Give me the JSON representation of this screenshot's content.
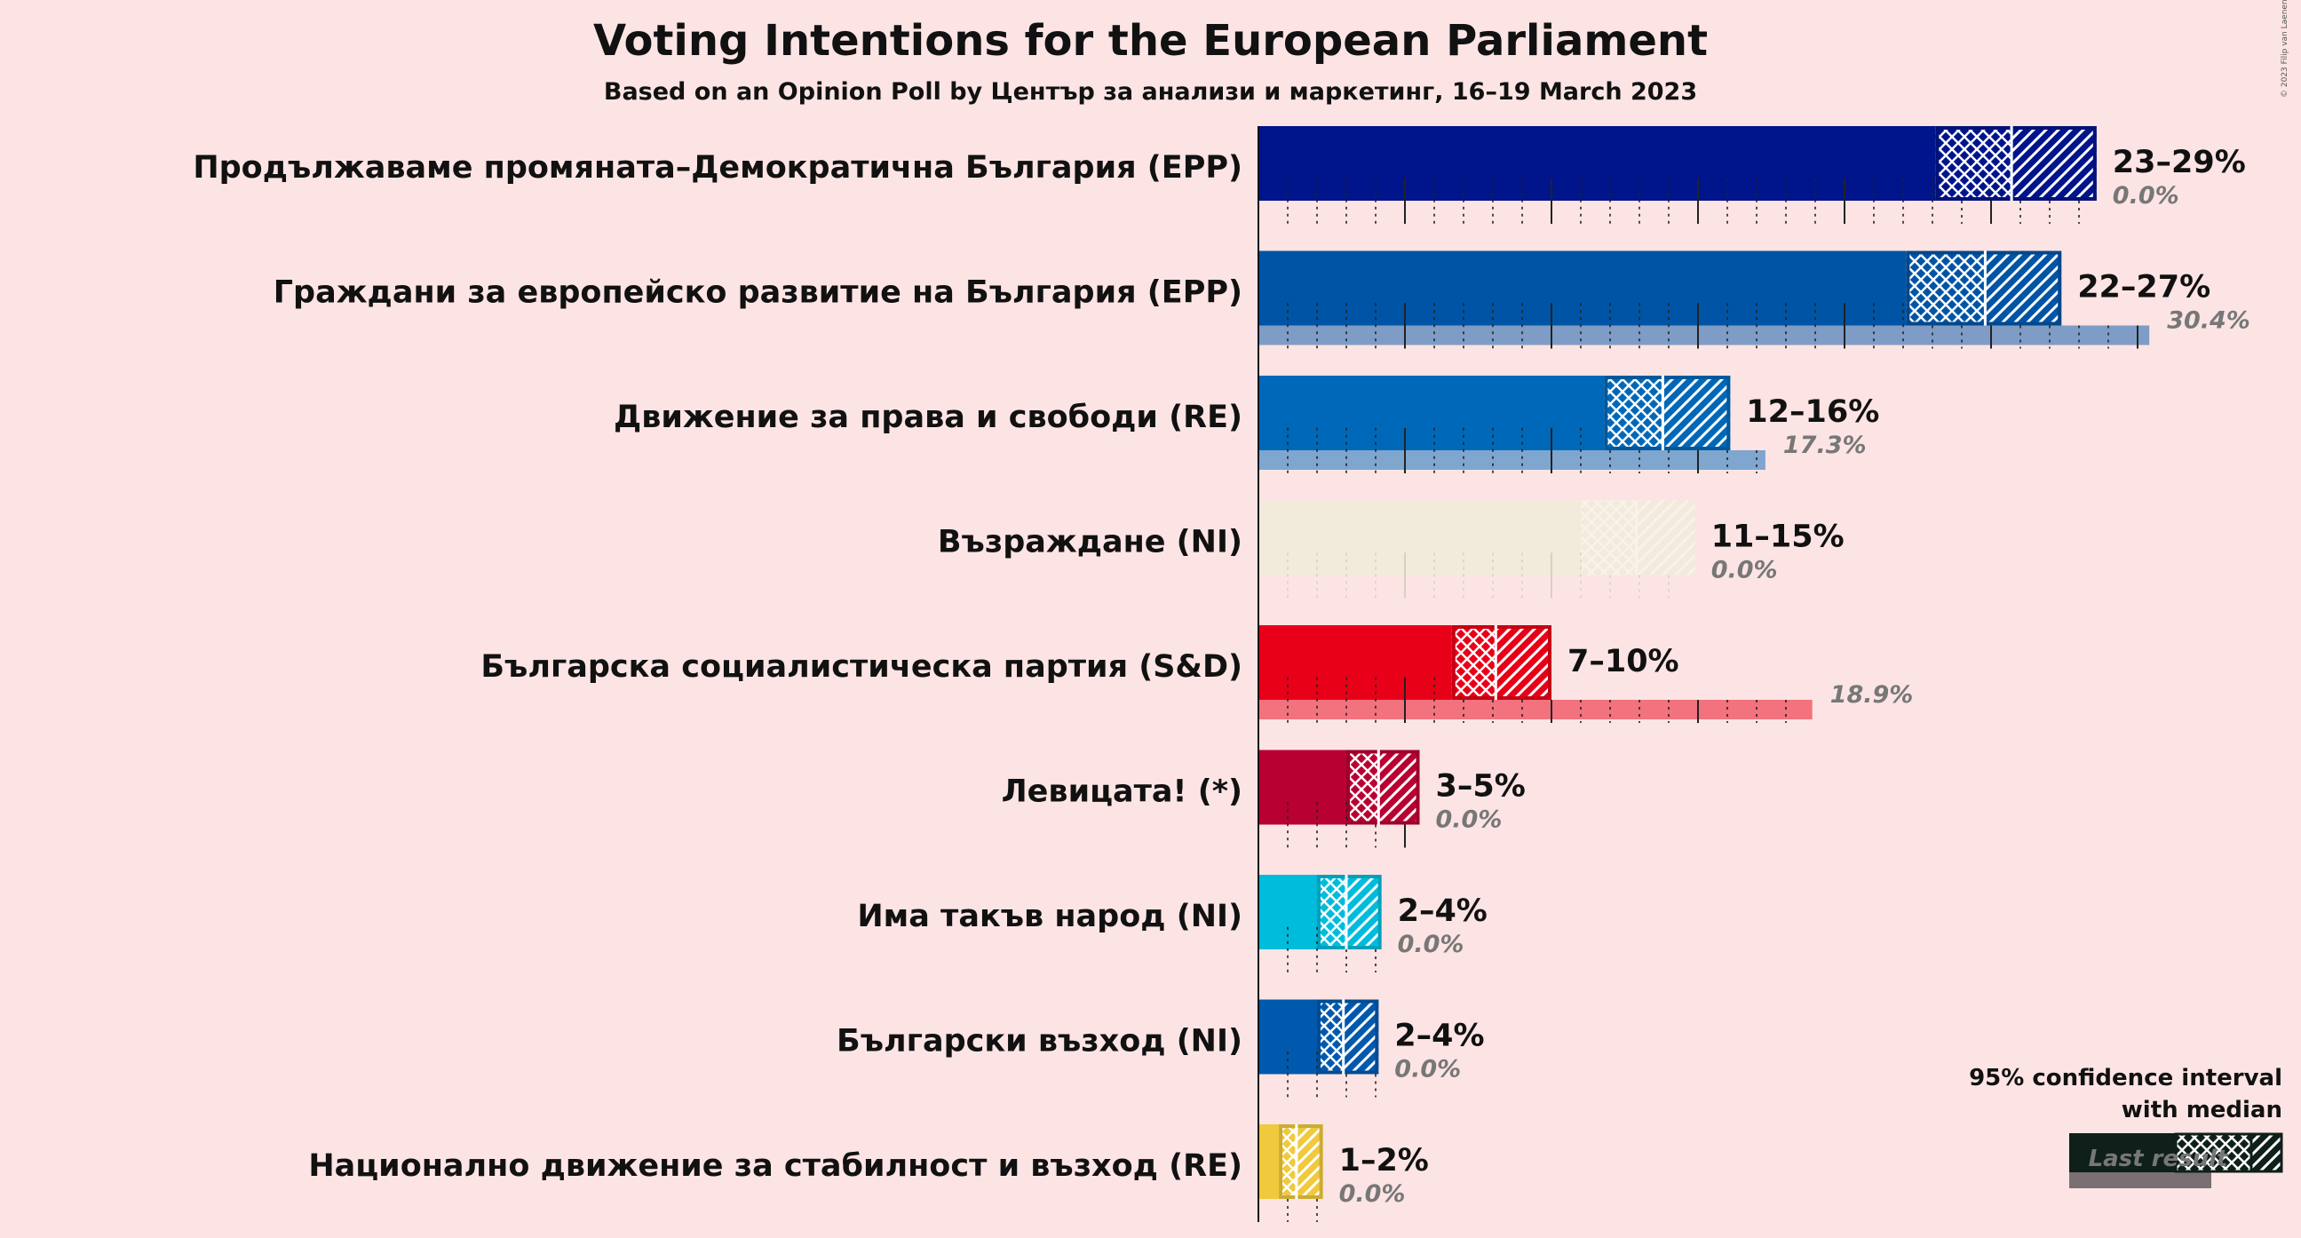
{
  "title": "Voting Intentions for the European Parliament",
  "subtitle": "Based on an Opinion Poll by Център за анализи и маркетинг, 16–19 March 2023",
  "copyright": "© 2023 Filip van Laenen",
  "legend": {
    "title_line1": "95% confidence interval",
    "title_line2": "with median",
    "last_result": "Last result"
  },
  "chart_data": {
    "type": "bar",
    "orientation": "horizontal",
    "title": "Voting Intentions for the European Parliament",
    "subtitle": "Based on an Opinion Poll by Център за анализи и маркетинг, 16–19 March 2023",
    "xlim": [
      0,
      35
    ],
    "parties": [
      {
        "name": "Продължаваме промяната–Демократична България (EPP)",
        "range_label": "23–29%",
        "low": 23.1,
        "high": 28.6,
        "median": 25.7,
        "last": 0.0,
        "last_label": "0.0%",
        "color": "#00148c",
        "faded": false
      },
      {
        "name": "Граждани за европейско развитие на България (EPP)",
        "range_label": "22–27%",
        "low": 22.1,
        "high": 27.4,
        "median": 24.8,
        "last": 30.4,
        "last_label": "30.4%",
        "color": "#0054a5",
        "faded": false
      },
      {
        "name": "Движение за права и свободи (RE)",
        "range_label": "12–16%",
        "low": 11.8,
        "high": 16.1,
        "median": 13.8,
        "last": 17.3,
        "last_label": "17.3%",
        "color": "#0068b8",
        "faded": false
      },
      {
        "name": "Възраждане (NI)",
        "range_label": "11–15%",
        "low": 11.0,
        "high": 14.9,
        "median": 12.9,
        "last": 0.0,
        "last_label": "0.0%",
        "color": "#f2eadb",
        "faded": true
      },
      {
        "name": "Българска социалистическа партия (S&D)",
        "range_label": "7–10%",
        "low": 6.6,
        "high": 10.0,
        "median": 8.1,
        "last": 18.9,
        "last_label": "18.9%",
        "color": "#e80018",
        "faded": false
      },
      {
        "name": "Левицата! (*)",
        "range_label": "3–5%",
        "low": 3.0,
        "high": 5.5,
        "median": 4.1,
        "last": 0.0,
        "last_label": "0.0%",
        "color": "#b90032",
        "faded": false
      },
      {
        "name": "Има такъв народ (NI)",
        "range_label": "2–4%",
        "low": 2.0,
        "high": 4.2,
        "median": 3.0,
        "last": 0.0,
        "last_label": "0.0%",
        "color": "#00bcdc",
        "faded": false
      },
      {
        "name": "Български възход (NI)",
        "range_label": "2–4%",
        "low": 2.0,
        "high": 4.1,
        "median": 2.9,
        "last": 0.0,
        "last_label": "0.0%",
        "color": "#0059ad",
        "faded": false
      },
      {
        "name": "Национално движение за стабилност и възход (RE)",
        "range_label": "1–2%",
        "low": 0.7,
        "high": 2.2,
        "median": 1.3,
        "last": 0.0,
        "last_label": "0.0%",
        "color": "#f0c93c",
        "faded": false
      }
    ]
  }
}
